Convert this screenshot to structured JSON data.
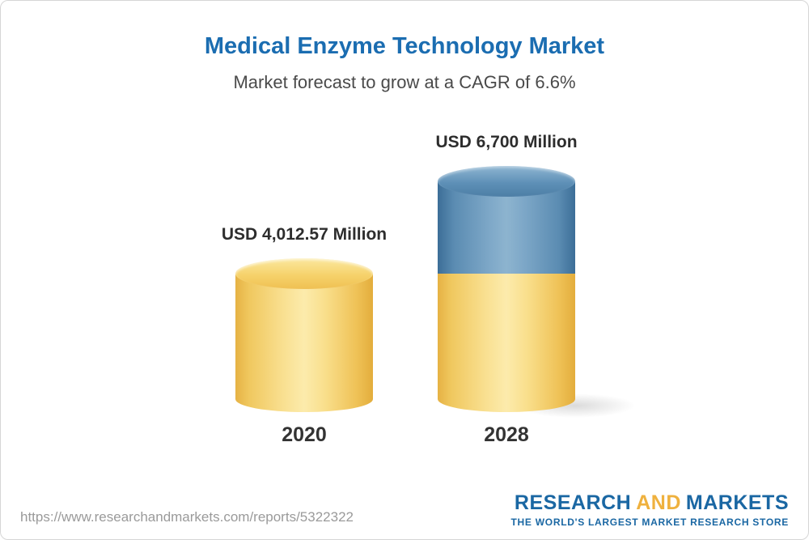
{
  "page": {
    "title": "Medical Enzyme Technology Market",
    "subtitle": "Market forecast to grow at a CAGR of 6.6%"
  },
  "chart_data": {
    "type": "bar",
    "variant": "3d-cylinder",
    "title": "Medical Enzyme Technology Market",
    "subtitle": "Market forecast to grow at a CAGR of 6.6%",
    "cagr_percent": 6.6,
    "unit": "USD Million",
    "categories": [
      "2020",
      "2028"
    ],
    "values": [
      4012.57,
      6700
    ],
    "value_labels": [
      "USD 4,012.57 Million",
      "USD 6,700 Million"
    ],
    "ylim": [
      0,
      7000
    ],
    "grid": false,
    "legend": "none",
    "encoding_note": "2028 cylinder is stacked: yellow base equals 2020 value, blue top segment is the growth to 6700",
    "colors": {
      "base_segment": "#F3CD64",
      "growth_segment": "#5B8DB4",
      "title_text": "#1B6DB1",
      "label_text": "#2D2D2D"
    }
  },
  "footer": {
    "url": "https://www.researchandmarkets.com/reports/5322322",
    "logo": {
      "word1": "RESEARCH",
      "word2": "AND",
      "word3": "MARKETS",
      "tagline": "THE WORLD'S LARGEST MARKET RESEARCH STORE",
      "blue": "#1A67A3",
      "gold": "#EFB13E"
    }
  }
}
